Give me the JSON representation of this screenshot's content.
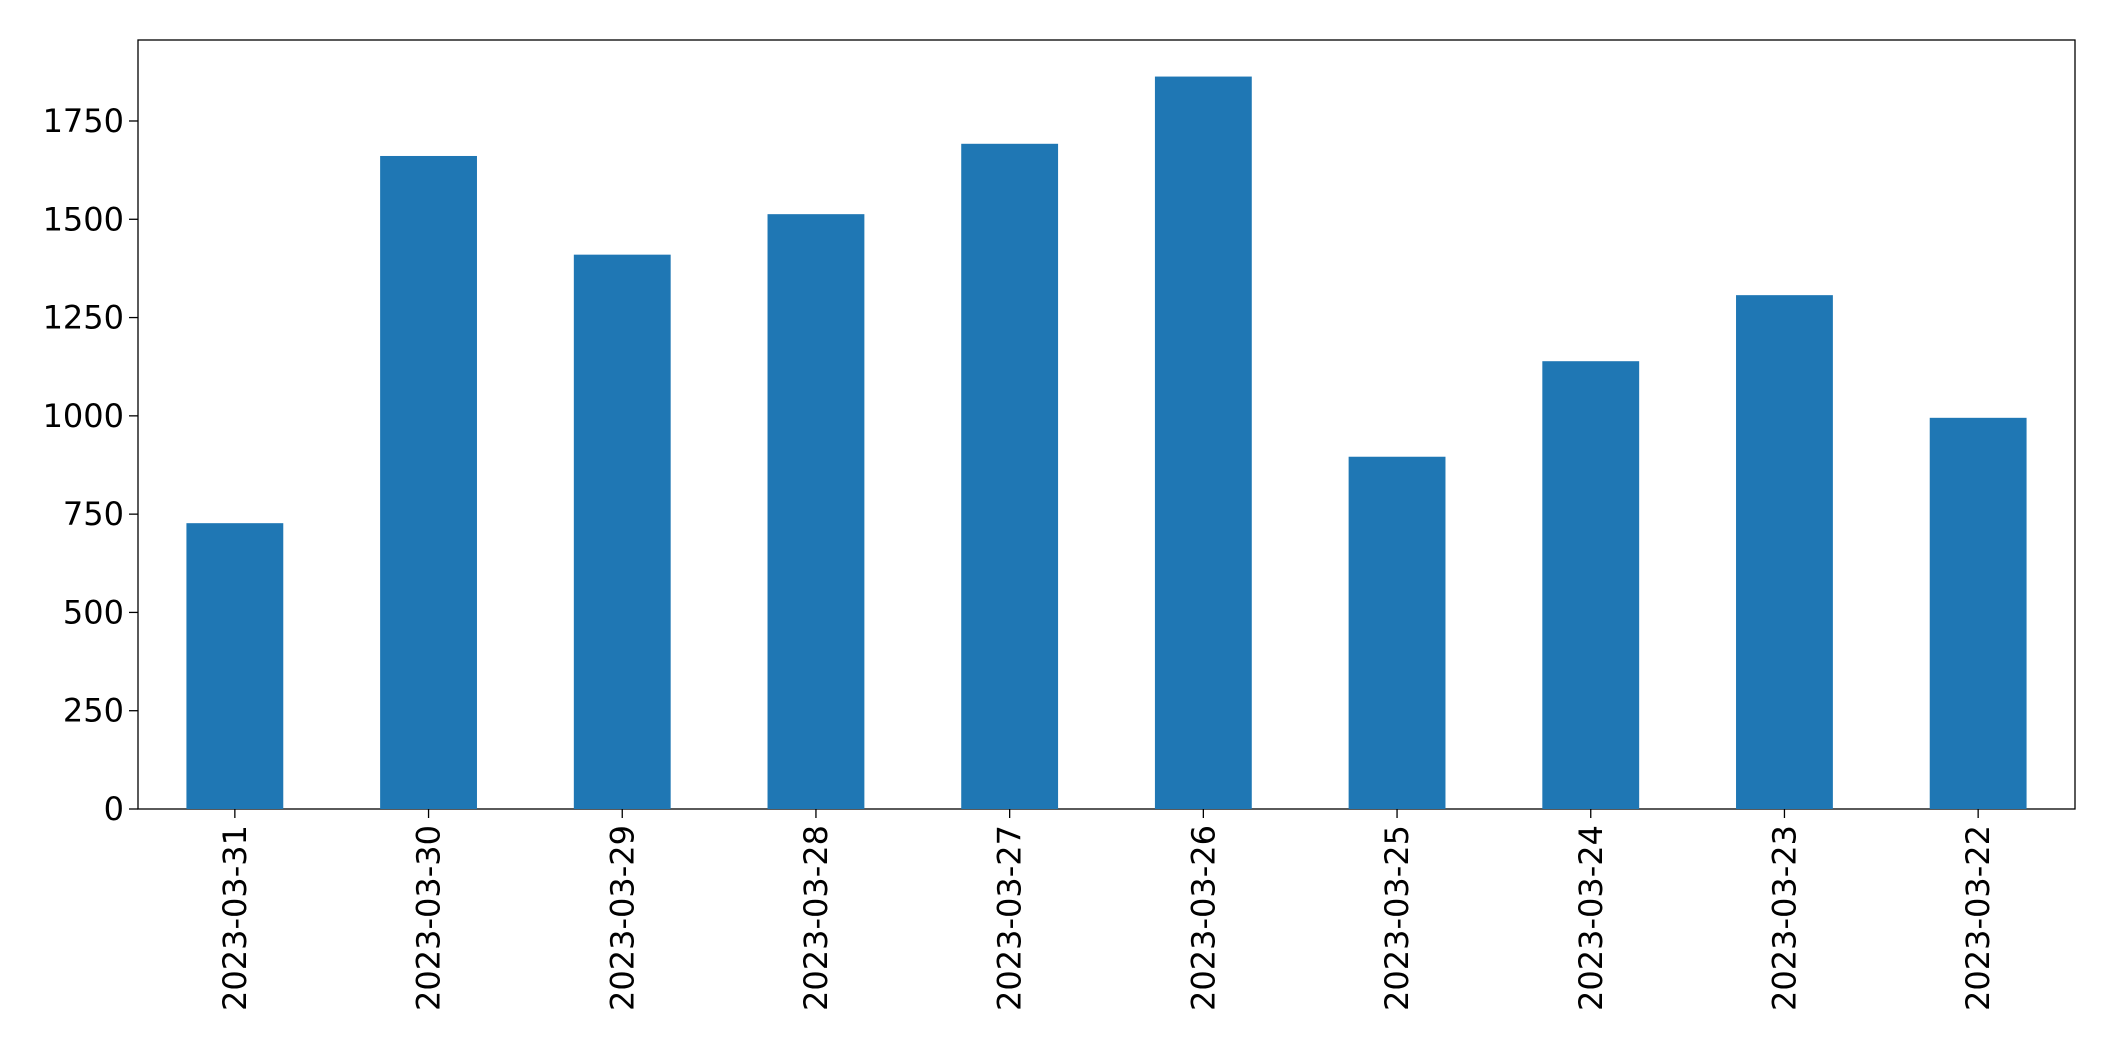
{
  "chart_data": {
    "type": "bar",
    "categories": [
      "2023-03-31",
      "2023-03-30",
      "2023-03-29",
      "2023-03-28",
      "2023-03-27",
      "2023-03-26",
      "2023-03-25",
      "2023-03-24",
      "2023-03-23",
      "2023-03-22"
    ],
    "values": [
      727,
      1661,
      1410,
      1513,
      1692,
      1863,
      896,
      1139,
      1307,
      995
    ],
    "color": "#1f77b4",
    "ylim": [
      0,
      1956
    ],
    "yticks": [
      0,
      250,
      500,
      750,
      1000,
      1250,
      1500,
      1750
    ],
    "grid": false
  }
}
